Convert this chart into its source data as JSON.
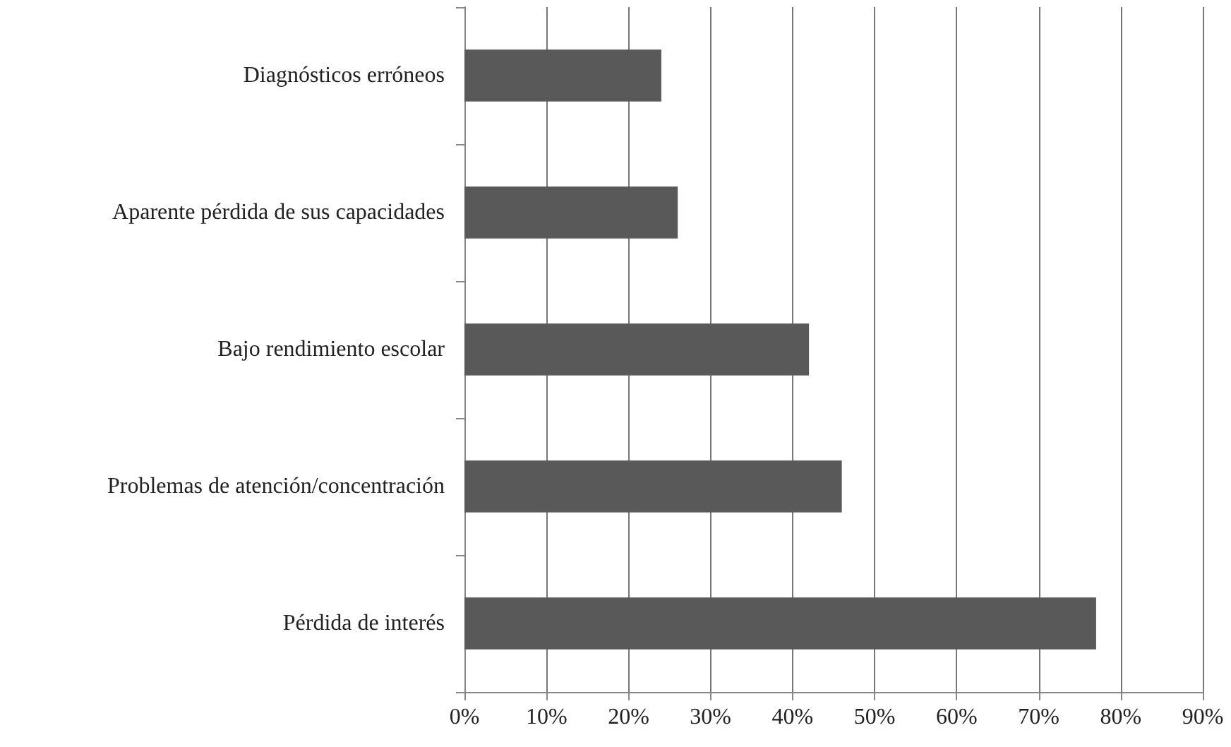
{
  "chart_data": {
    "type": "bar",
    "orientation": "horizontal",
    "categories": [
      "Diagnósticos erróneos",
      "Aparente pérdida de sus capacidades",
      "Bajo rendimiento escolar",
      "Problemas de atención/concentración",
      "Pérdida de interés"
    ],
    "values": [
      24,
      26,
      42,
      46,
      77
    ],
    "color": "#595959",
    "xlim": [
      0,
      90
    ],
    "xticks": [
      {
        "value": 0,
        "label": "0%"
      },
      {
        "value": 10,
        "label": "10%"
      },
      {
        "value": 20,
        "label": "20%"
      },
      {
        "value": 30,
        "label": "30%"
      },
      {
        "value": 40,
        "label": "40%"
      },
      {
        "value": 50,
        "label": "50%"
      },
      {
        "value": 60,
        "label": "60%"
      },
      {
        "value": 70,
        "label": "70%"
      },
      {
        "value": 80,
        "label": "80%"
      },
      {
        "value": 90,
        "label": "90%"
      }
    ],
    "grid": "x"
  }
}
